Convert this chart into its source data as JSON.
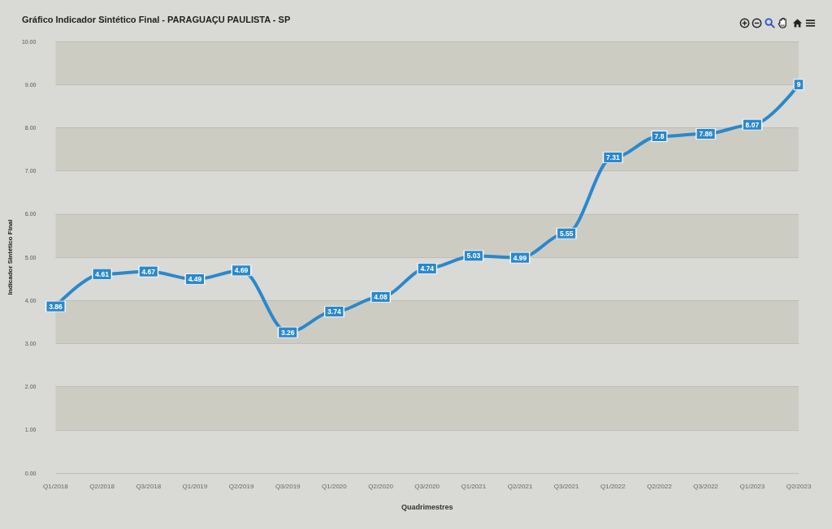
{
  "chart_data": {
    "type": "line",
    "title": "Gráfico Indicador Sintético Final - PARAGUAÇU PAULISTA - SP",
    "xlabel": "Quadrimestres",
    "ylabel": "Indicador Sintético Final",
    "categories": [
      "Q1/2018",
      "Q2/2018",
      "Q3/2018",
      "Q1/2019",
      "Q2/2019",
      "Q3/2019",
      "Q1/2020",
      "Q2/2020",
      "Q3/2020",
      "Q1/2021",
      "Q2/2021",
      "Q3/2021",
      "Q1/2022",
      "Q2/2022",
      "Q3/2022",
      "Q1/2023",
      "Q2/2023"
    ],
    "series": [
      {
        "color": "#2b88cc",
        "values": [
          3.86,
          4.61,
          4.67,
          4.49,
          4.69,
          3.26,
          3.74,
          4.08,
          4.74,
          5.03,
          4.99,
          5.55,
          7.31,
          7.8,
          7.86,
          8.07,
          9
        ]
      }
    ],
    "ylim": [
      0,
      10
    ],
    "yticks": [
      {
        "value": 0,
        "label": "0.00"
      },
      {
        "value": 1,
        "label": "1.00"
      },
      {
        "value": 2,
        "label": "2.00"
      },
      {
        "value": 3,
        "label": "3.00"
      },
      {
        "value": 4,
        "label": "4.00"
      },
      {
        "value": 5,
        "label": "5.00"
      },
      {
        "value": 6,
        "label": "6.00"
      },
      {
        "value": 7,
        "label": "7.00"
      },
      {
        "value": 8,
        "label": "8.00"
      },
      {
        "value": 9,
        "label": "9.00"
      },
      {
        "value": 10,
        "label": "10.00"
      }
    ],
    "grid": "y",
    "data_labels": true,
    "marker": "square"
  }
}
